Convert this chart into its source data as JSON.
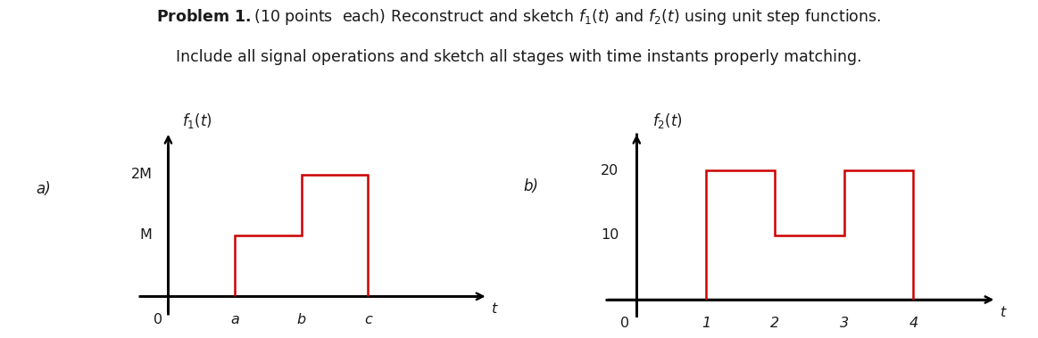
{
  "title_bold": "Problem 1.",
  "title_rest": "(10 points  each) Reconstruct and sketch ",
  "title_f1": "$f_1(t)$",
  "title_mid": " and ",
  "title_f2": "$f_2(t)$",
  "title_end": " using unit step functions.",
  "title_line2": "Include all signal operations and sketch all stages with time instants properly matching.",
  "graph_a": {
    "label": "a)",
    "ylabel_label": "$f_1(t)$",
    "ytick_labels": [
      "M",
      "2M"
    ],
    "ytick_positions": [
      1,
      2
    ],
    "xtick_labels": [
      "0",
      "a",
      "b",
      "c",
      "t"
    ],
    "xtick_positions": [
      0,
      1,
      2,
      3,
      4
    ],
    "signal_x": [
      1,
      1,
      2,
      2,
      3,
      3
    ],
    "signal_y": [
      0,
      1,
      1,
      2,
      2,
      0
    ],
    "signal_color": "#cc0000",
    "signal_lw": 1.8,
    "xlim": [
      -0.5,
      4.8
    ],
    "ylim": [
      -0.35,
      2.7
    ]
  },
  "graph_b": {
    "label": "b)",
    "ylabel_label": "$f_2(t)$",
    "ytick_labels": [
      "10",
      "20"
    ],
    "ytick_positions": [
      10,
      20
    ],
    "xtick_labels": [
      "0",
      "1",
      "2",
      "3",
      "4",
      "t"
    ],
    "xtick_positions": [
      0,
      1,
      2,
      3,
      4,
      5
    ],
    "signal_x": [
      1,
      1,
      2,
      2,
      3,
      3,
      4,
      4
    ],
    "signal_y": [
      0,
      20,
      20,
      10,
      10,
      20,
      20,
      0
    ],
    "signal_color": "#cc0000",
    "signal_lw": 1.8,
    "xlim": [
      -0.5,
      5.2
    ],
    "ylim": [
      -2.8,
      26
    ]
  },
  "bg_color": "#ffffff",
  "axis_color": "#000000",
  "text_color": "#1a1a1a",
  "fig_width": 11.63,
  "fig_height": 3.79
}
